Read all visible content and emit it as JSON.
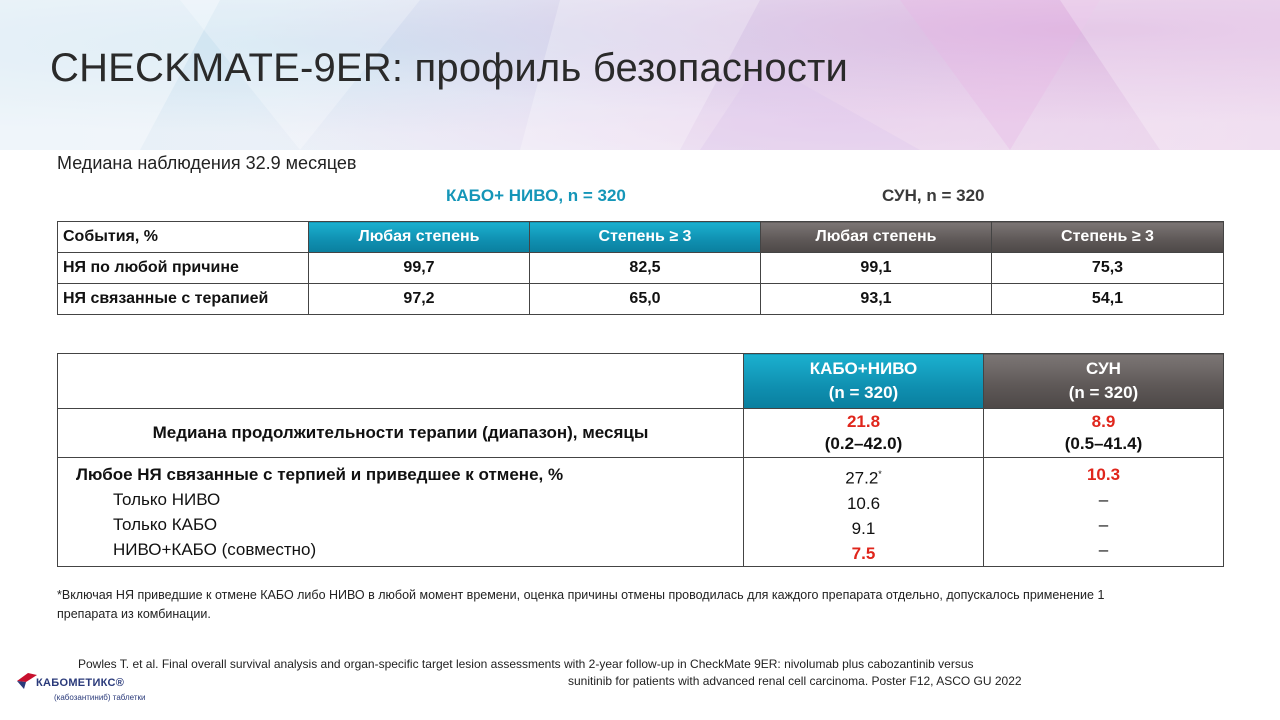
{
  "title": "CHECKMATE-9ER: профиль безопасности",
  "subtitle": "Медиана наблюдения 32.9 месяцев",
  "groups": {
    "kabo": "КАБО+ НИВО,  n = 320",
    "sun": "СУН,  n = 320"
  },
  "table1": {
    "headers": [
      "События, %",
      "Любая степень",
      "Степень ≥ 3",
      "Любая степень",
      "Степень ≥ 3"
    ],
    "rows": [
      [
        "НЯ по любой причине",
        "99,7",
        "82,5",
        "99,1",
        "75,3"
      ],
      [
        "НЯ связанные с терапией",
        "97,2",
        "65,0",
        "93,1",
        "54,1"
      ]
    ]
  },
  "table2": {
    "kabo_header": {
      "name": "КАБО+НИВО",
      "n": "(n = 320)"
    },
    "sun_header": {
      "name": "СУН",
      "n": "(n = 320)"
    },
    "duration": {
      "label": "Медиана  продолжительности  терапии  (диапазон),  месяцы",
      "kabo_value": "21.8",
      "kabo_range": "(0.2–42.0)",
      "sun_value": "8.9",
      "sun_range": "(0.5–41.4)"
    },
    "discontinuation": {
      "label": "Любое НЯ  связанные  с  терпией  и  приведшее к отмене,  %",
      "kabo_value": "27.2",
      "kabo_mark": "*",
      "sun_value": "10.3",
      "subrows": [
        {
          "label": "Только  НИВО",
          "kabo": "10.6",
          "sun": "–"
        },
        {
          "label": "Только  КАБО",
          "kabo": "9.1",
          "sun": "–"
        },
        {
          "label": "НИВО+КАБО  (совместно)",
          "kabo": "7.5",
          "sun": "–"
        }
      ]
    }
  },
  "footnote": "*Включая НЯ приведшие к отмене КАБО либо НИВО в любой момент времени, оценка причины отмены проводилась для каждого препарата отдельно, допускалось применение 1 препарата из комбинации.",
  "reference": {
    "line1": "Powles T. et al. Final overall  survival  analysis and organ-specific  target  lesion  assessments with 2-year  follow-up  in CheckMate 9ER:  nivolumab  plus cabozantinib versus",
    "line2": "sunitinib for patients with advanced  renal cell carcinoma. Poster F12, ASCO GU 2022"
  },
  "logo": {
    "name": "КАБОМЕТИКС®",
    "sub": "(кабозантиниб) таблетки"
  },
  "colors": {
    "teal": "#1596b8",
    "grey": "#5d5756",
    "red": "#e0261c"
  }
}
